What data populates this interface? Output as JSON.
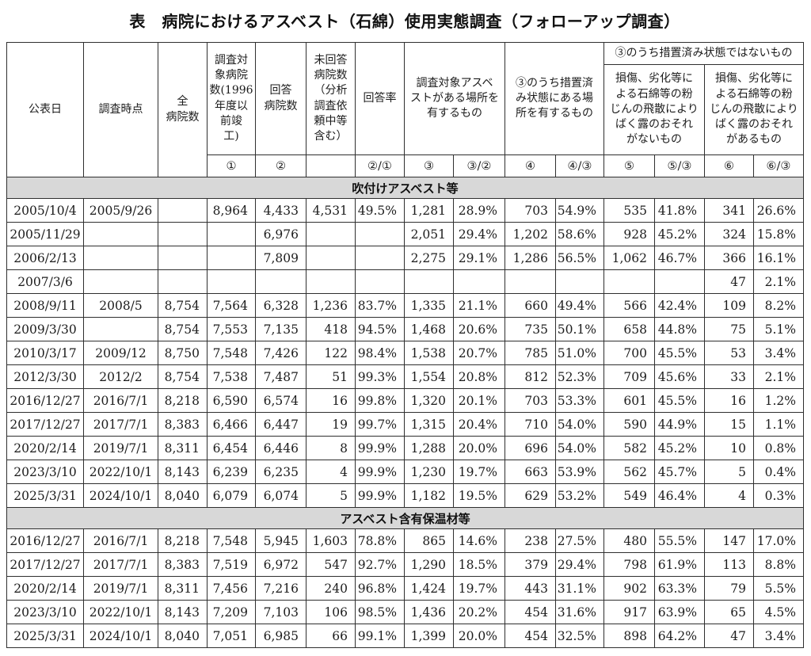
{
  "title": "表　病院におけるアスベスト（石綿）使用実態調査（フォローアップ調査）",
  "table": {
    "header": {
      "publish_date": "公表日",
      "survey_point": "調査時点",
      "total_hospitals": "全\n病院数",
      "target_hospitals": "調査対\n象病院\n数(1996\n年度以\n前竣\n工)",
      "responded": "回答\n病院数",
      "non_responded": "未回答\n病院数\n（分析\n調査依\n頼中等\n含む）",
      "response_rate": "回答率",
      "has_asbestos": "調査対象アスベ\nストがある場所を\n有するもの",
      "treated": "③のうち措置済\nみ状態にある場\n所を有するもの",
      "not_treated": "③のうち措置済み状態ではないもの",
      "no_exposure_risk": "損傷、劣化等に\nよる石綿等の粉\nじんの飛散により\nばく露のおそれ\nがないもの",
      "exposure_risk": "損傷、劣化等に\nよる石綿等の粉\nじんの飛散により\nばく露のおそれ\nがあるもの",
      "refs": [
        "①",
        "②",
        "",
        "②/①",
        "③",
        "③/②",
        "④",
        "④/③",
        "⑤",
        "⑤/③",
        "⑥",
        "⑥/③"
      ]
    },
    "sections": [
      {
        "label": "吹付けアスベスト等",
        "rows": [
          [
            "2005/10/4",
            "2005/9/26",
            "",
            "8,964",
            "4,433",
            "4,531",
            "49.5%",
            "1,281",
            "28.9%",
            "703",
            "54.9%",
            "535",
            "41.8%",
            "341",
            "26.6%"
          ],
          [
            "2005/11/29",
            "",
            "",
            "",
            "6,976",
            "",
            "",
            "2,051",
            "29.4%",
            "1,202",
            "58.6%",
            "928",
            "45.2%",
            "324",
            "15.8%"
          ],
          [
            "2006/2/13",
            "",
            "",
            "",
            "7,809",
            "",
            "",
            "2,275",
            "29.1%",
            "1,286",
            "56.5%",
            "1,062",
            "46.7%",
            "366",
            "16.1%"
          ],
          [
            "2007/3/6",
            "",
            "",
            "",
            "",
            "",
            "",
            "",
            "",
            "",
            "",
            "",
            "",
            "47",
            "2.1%"
          ],
          [
            "2008/9/11",
            "2008/5",
            "8,754",
            "7,564",
            "6,328",
            "1,236",
            "83.7%",
            "1,335",
            "21.1%",
            "660",
            "49.4%",
            "566",
            "42.4%",
            "109",
            "8.2%"
          ],
          [
            "2009/3/30",
            "",
            "8,754",
            "7,553",
            "7,135",
            "418",
            "94.5%",
            "1,468",
            "20.6%",
            "735",
            "50.1%",
            "658",
            "44.8%",
            "75",
            "5.1%"
          ],
          [
            "2010/3/17",
            "2009/12",
            "8,750",
            "7,548",
            "7,426",
            "122",
            "98.4%",
            "1,538",
            "20.7%",
            "785",
            "51.0%",
            "700",
            "45.5%",
            "53",
            "3.4%"
          ],
          [
            "2012/3/30",
            "2012/2",
            "8,754",
            "7,538",
            "7,487",
            "51",
            "99.3%",
            "1,554",
            "20.8%",
            "812",
            "52.3%",
            "709",
            "45.6%",
            "33",
            "2.1%"
          ],
          [
            "2016/12/27",
            "2016/7/1",
            "8,218",
            "6,590",
            "6,574",
            "16",
            "99.8%",
            "1,320",
            "20.1%",
            "703",
            "53.3%",
            "601",
            "45.5%",
            "16",
            "1.2%"
          ],
          [
            "2017/12/27",
            "2017/7/1",
            "8,383",
            "6,466",
            "6,447",
            "19",
            "99.7%",
            "1,315",
            "20.4%",
            "710",
            "54.0%",
            "590",
            "44.9%",
            "15",
            "1.1%"
          ],
          [
            "2020/2/14",
            "2019/7/1",
            "8,311",
            "6,454",
            "6,446",
            "8",
            "99.9%",
            "1,288",
            "20.0%",
            "696",
            "54.0%",
            "582",
            "45.2%",
            "10",
            "0.8%"
          ],
          [
            "2023/3/10",
            "2022/10/1",
            "8,143",
            "6,239",
            "6,235",
            "4",
            "99.9%",
            "1,230",
            "19.7%",
            "663",
            "53.9%",
            "562",
            "45.7%",
            "5",
            "0.4%"
          ],
          [
            "2025/3/31",
            "2024/10/1",
            "8,040",
            "6,079",
            "6,074",
            "5",
            "99.9%",
            "1,182",
            "19.5%",
            "629",
            "53.2%",
            "549",
            "46.4%",
            "4",
            "0.3%"
          ]
        ]
      },
      {
        "label": "アスベスト含有保温材等",
        "rows": [
          [
            "2016/12/27",
            "2016/7/1",
            "8,218",
            "7,548",
            "5,945",
            "1,603",
            "78.8%",
            "865",
            "14.6%",
            "238",
            "27.5%",
            "480",
            "55.5%",
            "147",
            "17.0%"
          ],
          [
            "2017/12/27",
            "2017/7/1",
            "8,383",
            "7,519",
            "6,972",
            "547",
            "92.7%",
            "1,290",
            "18.5%",
            "379",
            "29.4%",
            "798",
            "61.9%",
            "113",
            "8.8%"
          ],
          [
            "2020/2/14",
            "2019/7/1",
            "8,311",
            "7,456",
            "7,216",
            "240",
            "96.8%",
            "1,424",
            "19.7%",
            "443",
            "31.1%",
            "902",
            "63.3%",
            "79",
            "5.5%"
          ],
          [
            "2023/3/10",
            "2022/10/1",
            "8,143",
            "7,209",
            "7,103",
            "106",
            "98.5%",
            "1,436",
            "20.2%",
            "454",
            "31.6%",
            "917",
            "63.9%",
            "65",
            "4.5%"
          ],
          [
            "2025/3/31",
            "2024/10/1",
            "8,040",
            "7,051",
            "6,985",
            "66",
            "99.1%",
            "1,399",
            "20.0%",
            "454",
            "32.5%",
            "898",
            "64.2%",
            "47",
            "3.4%"
          ]
        ]
      }
    ]
  }
}
